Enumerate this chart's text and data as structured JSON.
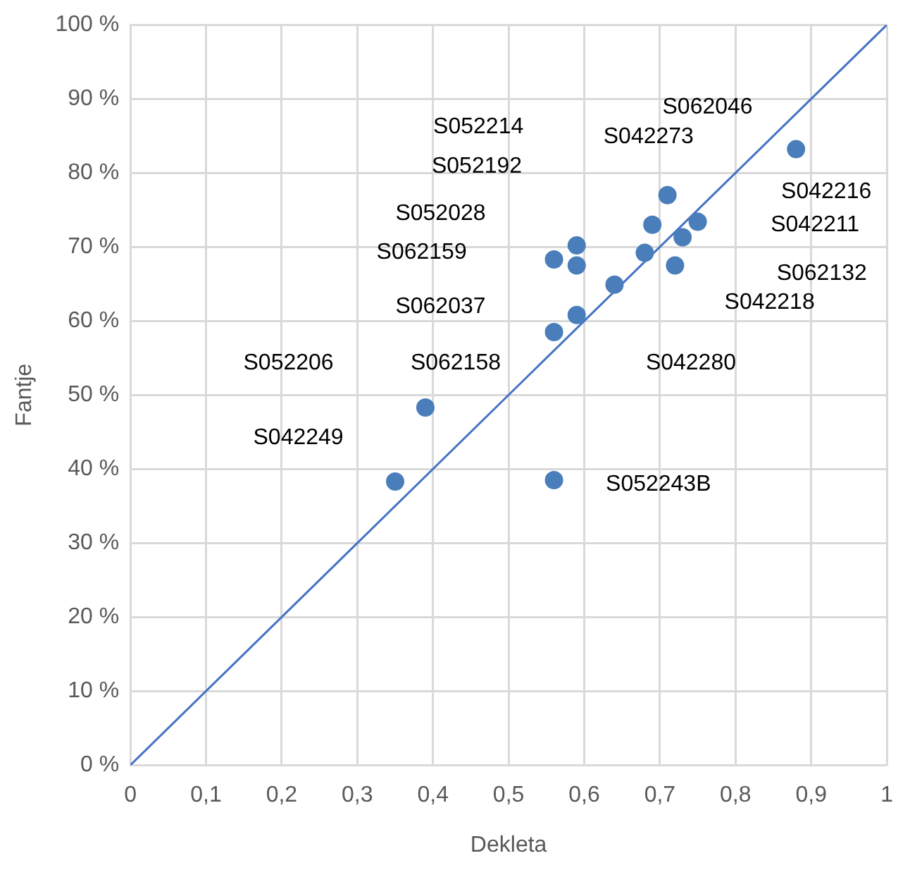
{
  "chart_data": {
    "type": "scatter",
    "xlabel": "Dekleta",
    "ylabel": "Fantje",
    "xlim": [
      0,
      1
    ],
    "ylim": [
      0,
      100
    ],
    "xticks": [
      0,
      {
        "value": 0.1,
        "label": "0,1"
      },
      {
        "value": 0.2,
        "label": "0,2"
      },
      {
        "value": 0.3,
        "label": "0,3"
      },
      {
        "value": 0.4,
        "label": "0,4"
      },
      {
        "value": 0.5,
        "label": "0,5"
      },
      {
        "value": 0.6,
        "label": "0,6"
      },
      {
        "value": 0.7,
        "label": "0,7"
      },
      {
        "value": 0.8,
        "label": "0,8"
      },
      {
        "value": 0.9,
        "label": "0,9"
      },
      1
    ],
    "yticks": [
      {
        "value": 0,
        "label": "0 %"
      },
      {
        "value": 10,
        "label": "10 %"
      },
      {
        "value": 20,
        "label": "20 %"
      },
      {
        "value": 30,
        "label": "30 %"
      },
      {
        "value": 40,
        "label": "40 %"
      },
      {
        "value": 50,
        "label": "50 %"
      },
      {
        "value": 60,
        "label": "60 %"
      },
      {
        "value": 70,
        "label": "70 %"
      },
      {
        "value": 80,
        "label": "80 %"
      },
      {
        "value": 90,
        "label": "90 %"
      },
      {
        "value": 100,
        "label": "100 %"
      }
    ],
    "grid": true,
    "legend": false,
    "series": [
      {
        "type": "scatter",
        "color": "#4a7ebb",
        "marker": "circle",
        "x": [
          0.35,
          0.39,
          0.56,
          0.56,
          0.59,
          0.56,
          0.59,
          0.59,
          0.64,
          0.68,
          0.69,
          0.71,
          0.72,
          0.73,
          0.75,
          0.88
        ],
        "values": [
          38.3,
          48.3,
          38.5,
          58.5,
          60.8,
          68.3,
          67.5,
          70.2,
          64.9,
          69.2,
          73.0,
          77.0,
          67.5,
          71.3,
          73.4,
          83.2
        ]
      },
      {
        "type": "line",
        "color": "#4472c4",
        "marker": "none",
        "line_style": "solid",
        "x": [
          0,
          1
        ],
        "values": [
          0,
          100
        ]
      }
    ],
    "annotations": [
      "S062046",
      "S052214",
      "S042273",
      "S052192",
      "S042216",
      "S052028",
      "S042211",
      "S062159",
      "S062132",
      "S042218",
      "S062037",
      "S052206",
      "S062158",
      "S042280",
      "S042249",
      "S052243B"
    ]
  }
}
